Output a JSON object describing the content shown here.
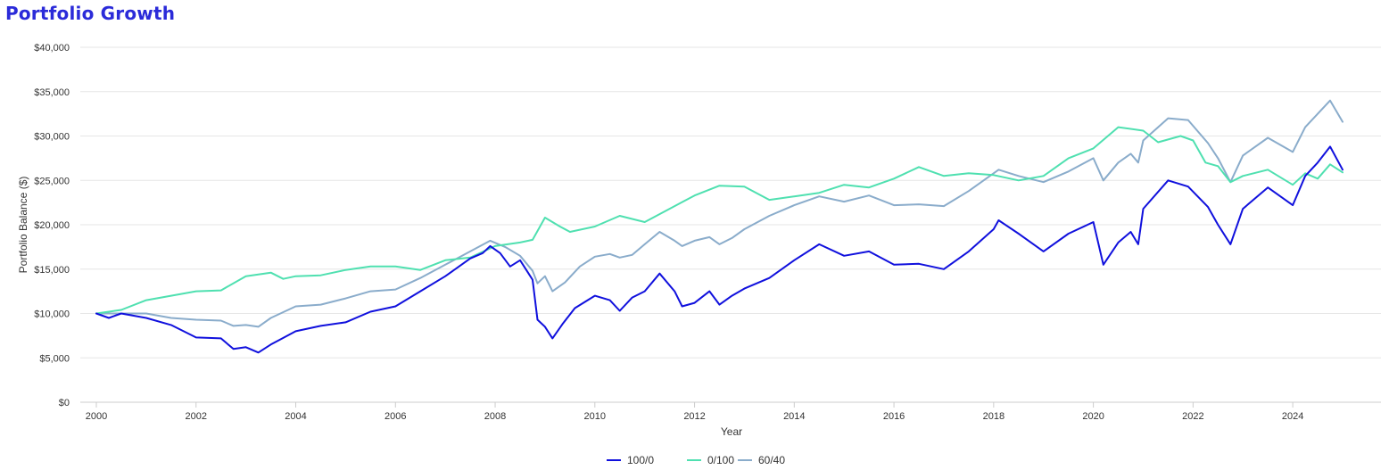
{
  "page": {
    "title": "Portfolio Growth",
    "title_color": "#2b2bd9"
  },
  "chart_data": {
    "type": "line",
    "xlabel": "Year",
    "ylabel": "Portfolio Balance ($)",
    "xlim": [
      2000,
      2025
    ],
    "ylim": [
      0,
      40000
    ],
    "x_ticks": [
      "2000",
      "2002",
      "2004",
      "2006",
      "2008",
      "2010",
      "2012",
      "2014",
      "2016",
      "2018",
      "2020",
      "2022",
      "2024"
    ],
    "y_ticks": [
      "$0",
      "$5,000",
      "$10,000",
      "$15,000",
      "$20,000",
      "$25,000",
      "$30,000",
      "$35,000",
      "$40,000"
    ],
    "grid": "horizontal",
    "legend": "bottom-center",
    "series": [
      {
        "name": "100/0",
        "color": "#1010dd",
        "points": [
          [
            2000.0,
            10000
          ],
          [
            2000.25,
            9500
          ],
          [
            2000.5,
            10000
          ],
          [
            2001.0,
            9500
          ],
          [
            2001.5,
            8700
          ],
          [
            2002.0,
            7300
          ],
          [
            2002.5,
            7200
          ],
          [
            2002.75,
            6000
          ],
          [
            2003.0,
            6200
          ],
          [
            2003.25,
            5600
          ],
          [
            2003.5,
            6500
          ],
          [
            2004.0,
            8000
          ],
          [
            2004.5,
            8600
          ],
          [
            2005.0,
            9000
          ],
          [
            2005.5,
            10200
          ],
          [
            2006.0,
            10800
          ],
          [
            2006.5,
            12500
          ],
          [
            2007.0,
            14200
          ],
          [
            2007.25,
            15200
          ],
          [
            2007.5,
            16200
          ],
          [
            2007.75,
            16800
          ],
          [
            2007.9,
            17600
          ],
          [
            2008.1,
            16800
          ],
          [
            2008.3,
            15300
          ],
          [
            2008.5,
            16000
          ],
          [
            2008.75,
            13800
          ],
          [
            2008.85,
            9300
          ],
          [
            2009.0,
            8500
          ],
          [
            2009.15,
            7200
          ],
          [
            2009.35,
            8800
          ],
          [
            2009.6,
            10600
          ],
          [
            2010.0,
            12000
          ],
          [
            2010.3,
            11500
          ],
          [
            2010.5,
            10300
          ],
          [
            2010.75,
            11800
          ],
          [
            2011.0,
            12500
          ],
          [
            2011.3,
            14500
          ],
          [
            2011.6,
            12500
          ],
          [
            2011.75,
            10800
          ],
          [
            2012.0,
            11200
          ],
          [
            2012.3,
            12500
          ],
          [
            2012.5,
            11000
          ],
          [
            2012.75,
            12000
          ],
          [
            2013.0,
            12800
          ],
          [
            2013.5,
            14000
          ],
          [
            2014.0,
            16000
          ],
          [
            2014.5,
            17800
          ],
          [
            2015.0,
            16500
          ],
          [
            2015.5,
            17000
          ],
          [
            2016.0,
            15500
          ],
          [
            2016.5,
            15600
          ],
          [
            2017.0,
            15000
          ],
          [
            2017.5,
            17000
          ],
          [
            2018.0,
            19500
          ],
          [
            2018.1,
            20500
          ],
          [
            2018.5,
            19000
          ],
          [
            2019.0,
            17000
          ],
          [
            2019.5,
            19000
          ],
          [
            2020.0,
            20300
          ],
          [
            2020.2,
            15500
          ],
          [
            2020.5,
            18000
          ],
          [
            2020.75,
            19200
          ],
          [
            2020.9,
            17800
          ],
          [
            2021.0,
            21800
          ],
          [
            2021.5,
            25000
          ],
          [
            2021.9,
            24300
          ],
          [
            2022.3,
            22000
          ],
          [
            2022.5,
            20000
          ],
          [
            2022.75,
            17800
          ],
          [
            2023.0,
            21800
          ],
          [
            2023.5,
            24200
          ],
          [
            2024.0,
            22200
          ],
          [
            2024.25,
            25500
          ],
          [
            2024.5,
            27000
          ],
          [
            2024.75,
            28800
          ],
          [
            2025.0,
            26200
          ]
        ]
      },
      {
        "name": "0/100",
        "color": "#4fe0b0",
        "points": [
          [
            2000.0,
            10000
          ],
          [
            2000.5,
            10400
          ],
          [
            2001.0,
            11500
          ],
          [
            2001.5,
            12000
          ],
          [
            2002.0,
            12500
          ],
          [
            2002.5,
            12600
          ],
          [
            2003.0,
            14200
          ],
          [
            2003.5,
            14600
          ],
          [
            2003.75,
            13900
          ],
          [
            2004.0,
            14200
          ],
          [
            2004.5,
            14300
          ],
          [
            2005.0,
            14900
          ],
          [
            2005.5,
            15300
          ],
          [
            2006.0,
            15300
          ],
          [
            2006.5,
            14900
          ],
          [
            2007.0,
            16000
          ],
          [
            2007.5,
            16300
          ],
          [
            2008.0,
            17600
          ],
          [
            2008.5,
            18000
          ],
          [
            2008.75,
            18300
          ],
          [
            2009.0,
            20800
          ],
          [
            2009.3,
            19800
          ],
          [
            2009.5,
            19200
          ],
          [
            2010.0,
            19800
          ],
          [
            2010.5,
            21000
          ],
          [
            2011.0,
            20300
          ],
          [
            2011.5,
            21800
          ],
          [
            2012.0,
            23300
          ],
          [
            2012.5,
            24400
          ],
          [
            2013.0,
            24300
          ],
          [
            2013.5,
            22800
          ],
          [
            2014.0,
            23200
          ],
          [
            2014.5,
            23600
          ],
          [
            2015.0,
            24500
          ],
          [
            2015.5,
            24200
          ],
          [
            2016.0,
            25200
          ],
          [
            2016.5,
            26500
          ],
          [
            2017.0,
            25500
          ],
          [
            2017.5,
            25800
          ],
          [
            2018.0,
            25600
          ],
          [
            2018.5,
            25000
          ],
          [
            2019.0,
            25500
          ],
          [
            2019.5,
            27500
          ],
          [
            2020.0,
            28600
          ],
          [
            2020.5,
            31000
          ],
          [
            2021.0,
            30600
          ],
          [
            2021.3,
            29300
          ],
          [
            2021.75,
            30000
          ],
          [
            2022.0,
            29500
          ],
          [
            2022.25,
            27000
          ],
          [
            2022.5,
            26600
          ],
          [
            2022.75,
            24800
          ],
          [
            2023.0,
            25500
          ],
          [
            2023.5,
            26200
          ],
          [
            2024.0,
            24500
          ],
          [
            2024.25,
            25800
          ],
          [
            2024.5,
            25200
          ],
          [
            2024.75,
            26800
          ],
          [
            2025.0,
            25900
          ]
        ]
      },
      {
        "name": "60/40",
        "color": "#8aaccb",
        "points": [
          [
            2000.0,
            10000
          ],
          [
            2000.5,
            10000
          ],
          [
            2001.0,
            10000
          ],
          [
            2001.5,
            9500
          ],
          [
            2002.0,
            9300
          ],
          [
            2002.5,
            9200
          ],
          [
            2002.75,
            8600
          ],
          [
            2003.0,
            8700
          ],
          [
            2003.25,
            8500
          ],
          [
            2003.5,
            9500
          ],
          [
            2004.0,
            10800
          ],
          [
            2004.5,
            11000
          ],
          [
            2005.0,
            11700
          ],
          [
            2005.5,
            12500
          ],
          [
            2006.0,
            12700
          ],
          [
            2006.5,
            14000
          ],
          [
            2007.0,
            15500
          ],
          [
            2007.5,
            17000
          ],
          [
            2007.9,
            18200
          ],
          [
            2008.2,
            17500
          ],
          [
            2008.5,
            16500
          ],
          [
            2008.75,
            14800
          ],
          [
            2008.85,
            13400
          ],
          [
            2009.0,
            14200
          ],
          [
            2009.15,
            12500
          ],
          [
            2009.4,
            13500
          ],
          [
            2009.7,
            15300
          ],
          [
            2010.0,
            16400
          ],
          [
            2010.3,
            16700
          ],
          [
            2010.5,
            16300
          ],
          [
            2010.75,
            16600
          ],
          [
            2011.0,
            17800
          ],
          [
            2011.3,
            19200
          ],
          [
            2011.6,
            18200
          ],
          [
            2011.75,
            17600
          ],
          [
            2012.0,
            18200
          ],
          [
            2012.3,
            18600
          ],
          [
            2012.5,
            17800
          ],
          [
            2012.75,
            18500
          ],
          [
            2013.0,
            19500
          ],
          [
            2013.5,
            21000
          ],
          [
            2014.0,
            22200
          ],
          [
            2014.5,
            23200
          ],
          [
            2015.0,
            22600
          ],
          [
            2015.5,
            23300
          ],
          [
            2016.0,
            22200
          ],
          [
            2016.5,
            22300
          ],
          [
            2017.0,
            22100
          ],
          [
            2017.5,
            23800
          ],
          [
            2018.0,
            25800
          ],
          [
            2018.1,
            26200
          ],
          [
            2018.5,
            25500
          ],
          [
            2019.0,
            24800
          ],
          [
            2019.5,
            26000
          ],
          [
            2020.0,
            27500
          ],
          [
            2020.2,
            25000
          ],
          [
            2020.5,
            27000
          ],
          [
            2020.75,
            28000
          ],
          [
            2020.9,
            27000
          ],
          [
            2021.0,
            29500
          ],
          [
            2021.5,
            32000
          ],
          [
            2021.9,
            31800
          ],
          [
            2022.3,
            29200
          ],
          [
            2022.5,
            27500
          ],
          [
            2022.75,
            24800
          ],
          [
            2023.0,
            27800
          ],
          [
            2023.5,
            29800
          ],
          [
            2024.0,
            28200
          ],
          [
            2024.25,
            31000
          ],
          [
            2024.5,
            32500
          ],
          [
            2024.75,
            34000
          ],
          [
            2025.0,
            31600
          ]
        ]
      }
    ]
  }
}
